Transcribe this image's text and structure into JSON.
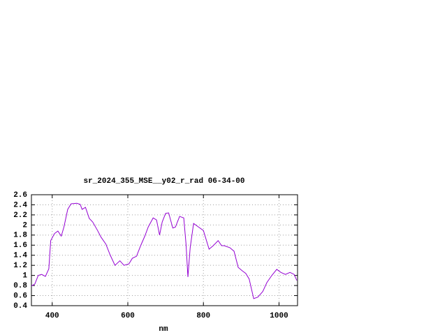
{
  "chart_data": {
    "type": "line",
    "title": "sr_2024_355_MSE__y02_r_rad 06-34-00",
    "x_label": "nm",
    "x": [
      345,
      354,
      363,
      372,
      382,
      391,
      396,
      406,
      415,
      424,
      431,
      441,
      450,
      465,
      474,
      479,
      488,
      498,
      507,
      520,
      529,
      542,
      553,
      566,
      579,
      590,
      603,
      612,
      623,
      634,
      645,
      654,
      667,
      676,
      684,
      691,
      700,
      708,
      719,
      726,
      737,
      748,
      754,
      759,
      765,
      774,
      787,
      800,
      815,
      826,
      839,
      848,
      855,
      870,
      881,
      892,
      903,
      912,
      921,
      933,
      944,
      957,
      968,
      981,
      994,
      1005,
      1017,
      1029,
      1040,
      1047
    ],
    "series": [
      {
        "color": "#9400d3",
        "values": [
          0.79,
          0.83,
          1.0,
          1.02,
          0.98,
          1.13,
          1.69,
          1.83,
          1.88,
          1.78,
          1.96,
          2.31,
          2.42,
          2.43,
          2.41,
          2.31,
          2.35,
          2.13,
          2.06,
          1.89,
          1.76,
          1.62,
          1.41,
          1.2,
          1.29,
          1.2,
          1.23,
          1.34,
          1.38,
          1.59,
          1.78,
          1.96,
          2.14,
          2.1,
          1.8,
          2.06,
          2.23,
          2.24,
          1.94,
          1.96,
          2.17,
          2.14,
          1.62,
          0.97,
          1.55,
          2.03,
          1.96,
          1.89,
          1.52,
          1.59,
          1.69,
          1.59,
          1.59,
          1.55,
          1.48,
          1.16,
          1.09,
          1.04,
          0.93,
          0.54,
          0.57,
          0.68,
          0.86,
          1.0,
          1.12,
          1.06,
          1.02,
          1.06,
          1.02,
          0.9
        ]
      }
    ],
    "xlim": [
      345,
      1049
    ],
    "xticks": [
      400,
      600,
      800,
      1000
    ],
    "ylim": [
      0.4,
      2.6
    ],
    "yticks": [
      0.4,
      0.6,
      0.8,
      1,
      1.2,
      1.4,
      1.6,
      1.8,
      2,
      2.2,
      2.4,
      2.6
    ],
    "grid": true
  }
}
